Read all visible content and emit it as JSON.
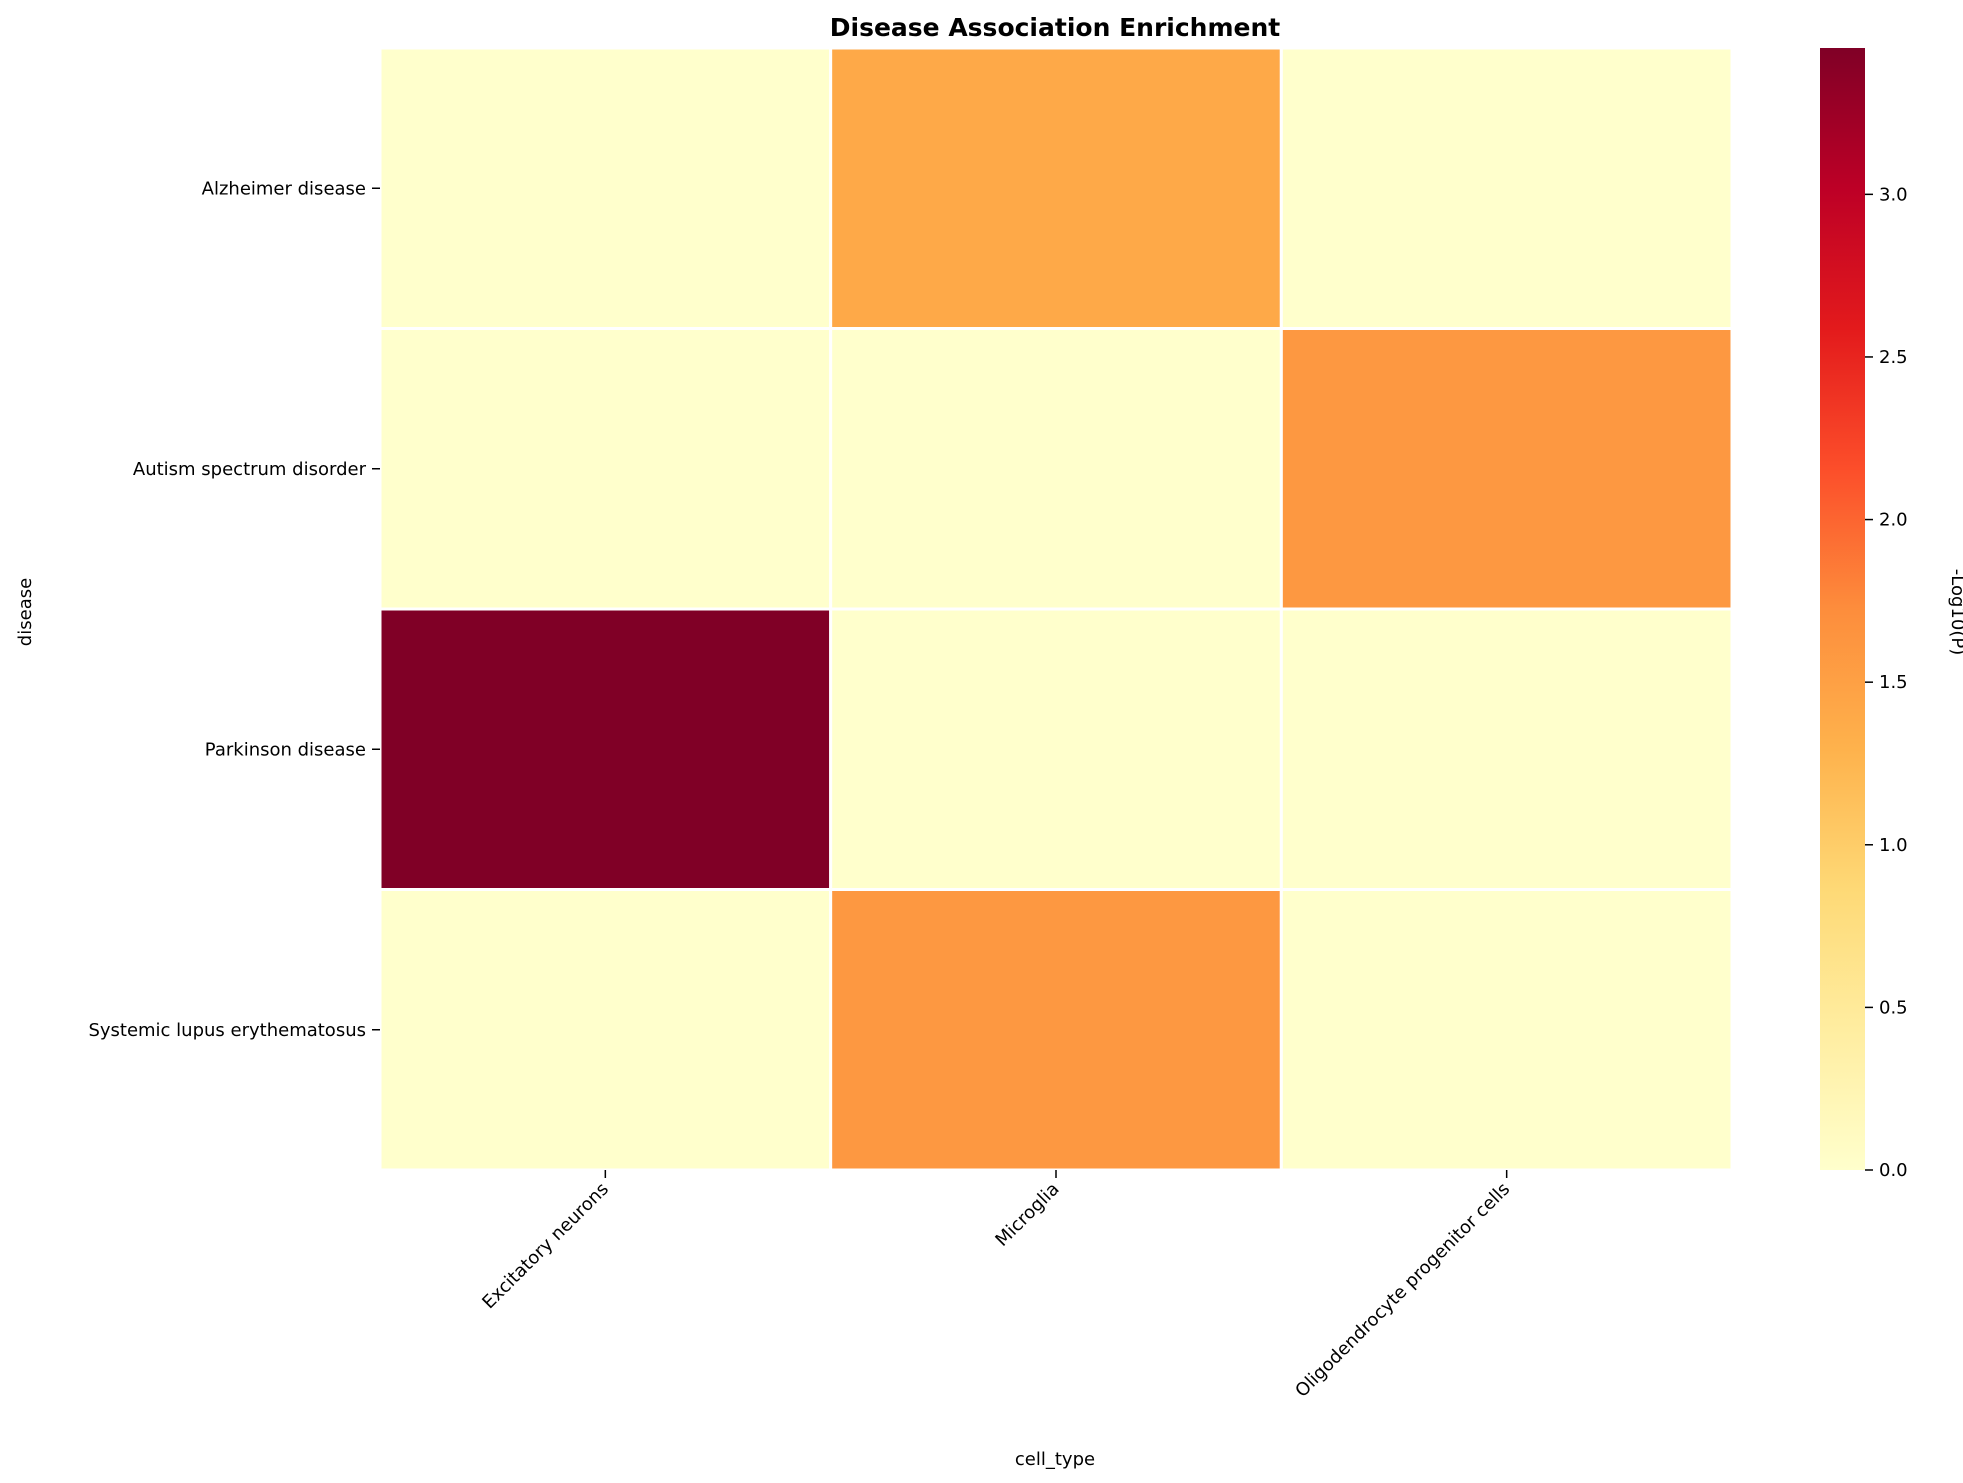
{
  "chart_data": {
    "type": "heatmap",
    "title": "Disease Association Enrichment",
    "xlabel": "cell_type",
    "ylabel": "disease",
    "x_categories": [
      "Excitatory neurons",
      "Microglia",
      "Oligodendrocyte progenitor cells"
    ],
    "y_categories": [
      "Alzheimer disease",
      "Autism spectrum disorder",
      "Parkinson disease",
      "Systemic lupus erythematosus"
    ],
    "values": [
      [
        0.0,
        1.4,
        0.0
      ],
      [
        0.0,
        0.0,
        1.6
      ],
      [
        3.45,
        0.0,
        0.0
      ],
      [
        0.0,
        1.6,
        0.0
      ]
    ],
    "colorscale": "YlOrRd",
    "colorbar": {
      "label": "-Log10(P)",
      "range": [
        0,
        3.45
      ],
      "ticks": [
        "0.0",
        "0.5",
        "1.0",
        "1.5",
        "2.0",
        "2.5",
        "3.0"
      ]
    },
    "grid": false
  }
}
